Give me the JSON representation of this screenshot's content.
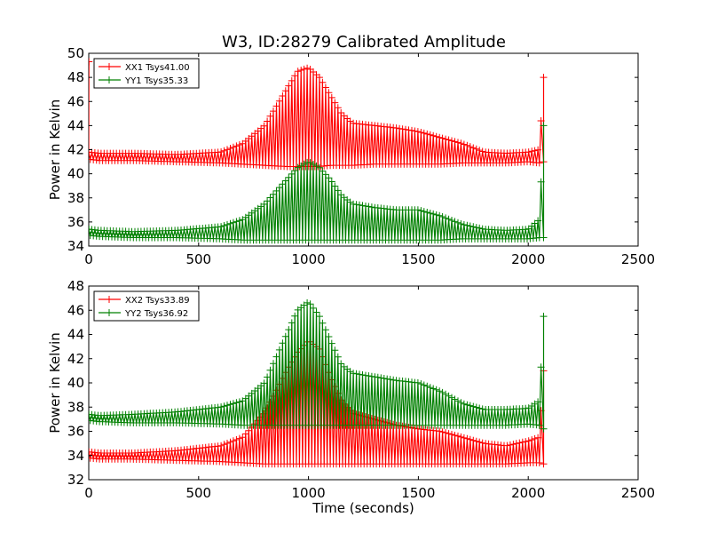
{
  "title": "W3, ID:28279 Calibrated Amplitude",
  "colors": {
    "red": "#ff0000",
    "green": "#008000"
  },
  "chart_data": [
    {
      "type": "line",
      "title": "W3, ID:28279 Calibrated Amplitude",
      "xlabel": "",
      "ylabel": "Power in Kelvin",
      "xlim": [
        0,
        2500
      ],
      "ylim": [
        34,
        50
      ],
      "xticks": [
        "0",
        "500",
        "1000",
        "1500",
        "2000",
        "2500"
      ],
      "yticks": [
        "34",
        "36",
        "38",
        "40",
        "42",
        "44",
        "46",
        "48",
        "50"
      ],
      "grid": false,
      "legend_position": "top-left",
      "marker": "+",
      "series": [
        {
          "name": "XX1 Tsys41.00",
          "color": "#ff0000",
          "x": [
            0,
            50,
            200,
            400,
            600,
            700,
            800,
            900,
            950,
            1000,
            1050,
            1100,
            1150,
            1200,
            1300,
            1400,
            1500,
            1600,
            1700,
            1800,
            1900,
            2000,
            2050,
            2070
          ],
          "upper": [
            41.8,
            41.7,
            41.7,
            41.6,
            41.8,
            42.5,
            44.0,
            47.0,
            48.5,
            48.8,
            48.0,
            46.5,
            45.0,
            44.2,
            44.0,
            43.8,
            43.5,
            43.0,
            42.5,
            41.8,
            41.7,
            41.8,
            42.0,
            48.0
          ],
          "lower": [
            41.2,
            41.1,
            41.1,
            41.0,
            40.9,
            40.8,
            40.7,
            40.6,
            40.6,
            40.6,
            40.6,
            40.7,
            40.7,
            40.7,
            40.8,
            40.8,
            40.8,
            40.8,
            40.9,
            40.9,
            40.9,
            41.0,
            40.9,
            41.0
          ]
        },
        {
          "name": "YY1 Tsys35.33",
          "color": "#008000",
          "x": [
            0,
            50,
            200,
            400,
            600,
            700,
            800,
            900,
            950,
            1000,
            1050,
            1100,
            1150,
            1200,
            1300,
            1400,
            1500,
            1600,
            1700,
            1800,
            1900,
            2000,
            2050,
            2070
          ],
          "upper": [
            35.4,
            35.3,
            35.2,
            35.3,
            35.6,
            36.2,
            37.5,
            39.5,
            40.5,
            41.0,
            40.5,
            39.5,
            38.2,
            37.5,
            37.2,
            37.0,
            37.0,
            36.5,
            35.8,
            35.4,
            35.3,
            35.4,
            36.2,
            44.0
          ],
          "lower": [
            34.9,
            34.8,
            34.7,
            34.7,
            34.6,
            34.5,
            34.5,
            34.5,
            34.5,
            34.5,
            34.5,
            34.5,
            34.5,
            34.5,
            34.5,
            34.5,
            34.5,
            34.5,
            34.6,
            34.6,
            34.6,
            34.6,
            34.7,
            34.7
          ]
        }
      ]
    },
    {
      "type": "line",
      "title": "",
      "xlabel": "Time (seconds)",
      "ylabel": "Power in Kelvin",
      "xlim": [
        0,
        2500
      ],
      "ylim": [
        32,
        48
      ],
      "xticks": [
        "0",
        "500",
        "1000",
        "1500",
        "2000",
        "2500"
      ],
      "yticks": [
        "32",
        "34",
        "36",
        "38",
        "40",
        "42",
        "44",
        "46",
        "48"
      ],
      "grid": false,
      "legend_position": "top-left",
      "marker": "+",
      "series": [
        {
          "name": "XX2 Tsys33.89",
          "color": "#ff0000",
          "x": [
            0,
            50,
            200,
            400,
            600,
            700,
            800,
            900,
            950,
            1000,
            1050,
            1100,
            1150,
            1200,
            1300,
            1400,
            1500,
            1600,
            1700,
            1800,
            1900,
            2000,
            2050,
            2070
          ],
          "upper": [
            34.3,
            34.2,
            34.2,
            34.4,
            34.8,
            35.5,
            37.5,
            41.0,
            42.5,
            43.5,
            42.8,
            40.5,
            38.5,
            37.5,
            37.0,
            36.5,
            36.2,
            36.0,
            35.5,
            35.0,
            34.8,
            35.2,
            35.5,
            41.0
          ],
          "lower": [
            33.8,
            33.7,
            33.7,
            33.6,
            33.5,
            33.4,
            33.3,
            33.3,
            33.3,
            33.3,
            33.3,
            33.3,
            33.3,
            33.3,
            33.3,
            33.3,
            33.3,
            33.3,
            33.3,
            33.3,
            33.3,
            33.4,
            33.4,
            33.3
          ]
        },
        {
          "name": "YY2 Tsys36.92",
          "color": "#008000",
          "x": [
            0,
            50,
            200,
            400,
            600,
            700,
            800,
            900,
            950,
            1000,
            1050,
            1100,
            1150,
            1200,
            1300,
            1400,
            1500,
            1600,
            1700,
            1800,
            1900,
            2000,
            2050,
            2070
          ],
          "upper": [
            37.4,
            37.3,
            37.4,
            37.6,
            38.0,
            38.5,
            40.0,
            44.0,
            46.0,
            46.7,
            45.5,
            43.5,
            41.5,
            40.8,
            40.5,
            40.2,
            40.0,
            39.3,
            38.3,
            37.8,
            37.8,
            37.9,
            38.5,
            45.5
          ],
          "lower": [
            36.9,
            36.8,
            36.7,
            36.7,
            36.6,
            36.5,
            36.5,
            36.5,
            36.5,
            36.5,
            36.5,
            36.5,
            36.5,
            36.5,
            36.5,
            36.5,
            36.5,
            36.5,
            36.5,
            36.5,
            36.5,
            36.6,
            36.5,
            36.2
          ]
        }
      ]
    }
  ]
}
